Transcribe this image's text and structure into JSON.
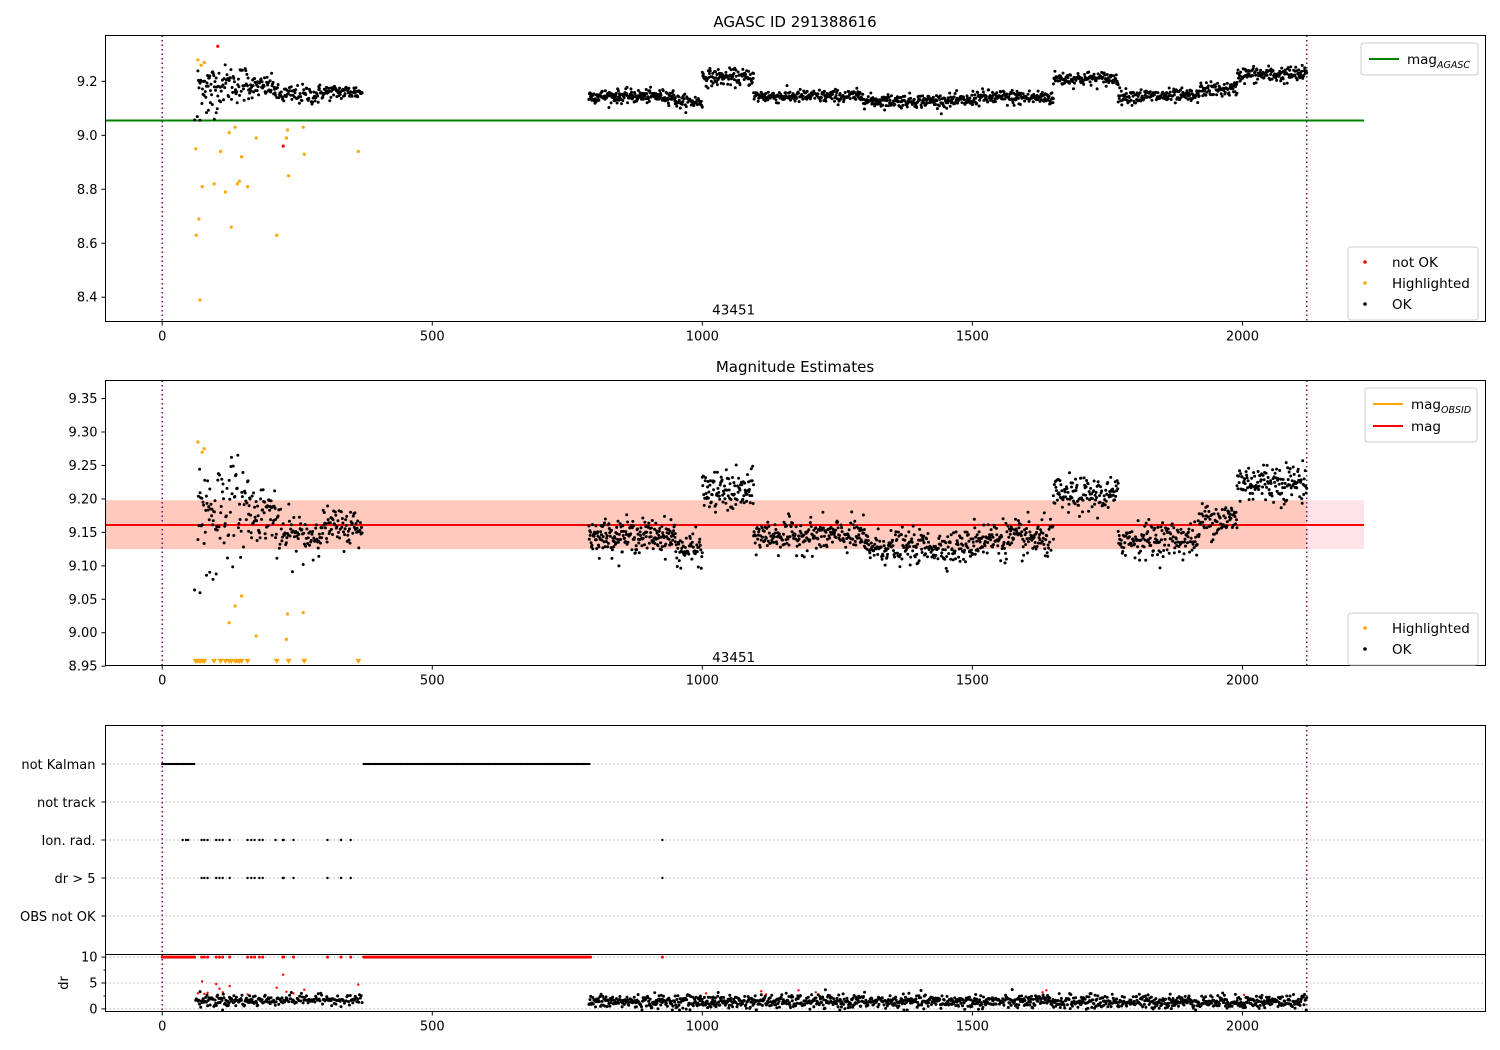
{
  "chart_data": [
    {
      "id": "agasc",
      "type": "scatter",
      "title": "AGASC ID 291388616",
      "xlim": [
        -105,
        2450
      ],
      "ylim": [
        8.31,
        9.37
      ],
      "xticks": [
        0,
        500,
        1000,
        1500,
        2000
      ],
      "yticks": [
        8.4,
        8.6,
        8.8,
        9.0,
        9.2
      ],
      "ytick_decimals": 1,
      "vlines": [
        0,
        2119
      ],
      "annotation": {
        "text": "43451",
        "x": 1058,
        "y": 8.35
      },
      "hline": {
        "name": "mag_AGASC",
        "value": 9.055,
        "x": [
          -105,
          2225
        ],
        "color": "#008000"
      },
      "series": [
        {
          "name": "not OK",
          "color": "#ff0000",
          "points": [
            [
              103,
              9.33
            ],
            [
              224,
              8.96
            ]
          ]
        },
        {
          "name": "Highlighted",
          "color": "#ffa500",
          "points": [
            [
              62,
              8.95
            ],
            [
              63,
              8.63
            ],
            [
              66,
              9.28
            ],
            [
              68,
              8.69
            ],
            [
              70,
              8.39
            ],
            [
              72,
              9.26
            ],
            [
              74,
              8.81
            ],
            [
              78,
              9.27
            ],
            [
              96,
              8.82
            ],
            [
              108,
              8.94
            ],
            [
              117,
              8.79
            ],
            [
              124,
              9.01
            ],
            [
              128,
              8.66
            ],
            [
              135,
              9.03
            ],
            [
              139,
              8.82
            ],
            [
              143,
              8.83
            ],
            [
              147,
              8.92
            ],
            [
              158,
              8.81
            ],
            [
              174,
              8.99
            ],
            [
              212,
              8.63
            ],
            [
              230,
              8.99
            ],
            [
              232,
              9.02
            ],
            [
              234,
              8.85
            ],
            [
              261,
              9.03
            ],
            [
              263,
              8.93
            ],
            [
              363,
              8.94
            ]
          ]
        },
        {
          "name": "OK",
          "color": "#000000",
          "segments": [
            {
              "x": [
                60,
                70
              ],
              "y": 9.06,
              "sd": 0.01,
              "n": 3
            },
            {
              "x": [
                66,
                160
              ],
              "y": 9.19,
              "sd": 0.035,
              "n": 90
            },
            {
              "x": [
                82,
                100
              ],
              "y": 9.1,
              "sd": 0.02,
              "n": 6
            },
            {
              "x": [
                160,
                210
              ],
              "y": 9.18,
              "sd": 0.02,
              "n": 55
            },
            {
              "x": [
                210,
                290
              ],
              "y": 9.15,
              "sd": 0.018,
              "n": 70
            },
            {
              "x": [
                290,
                370
              ],
              "y": 9.16,
              "sd": 0.014,
              "n": 80
            },
            {
              "x": [
                790,
                950
              ],
              "y": 9.145,
              "sd": 0.012,
              "n": 200
            },
            {
              "x": [
                950,
                1000
              ],
              "y": 9.125,
              "sd": 0.012,
              "n": 55
            },
            {
              "x": [
                1000,
                1095
              ],
              "y": 9.215,
              "sd": 0.015,
              "n": 110
            },
            {
              "x": [
                1095,
                1300
              ],
              "y": 9.145,
              "sd": 0.012,
              "n": 220
            },
            {
              "x": [
                1300,
                1500
              ],
              "y": 9.128,
              "sd": 0.012,
              "n": 220
            },
            {
              "x": [
                1500,
                1650
              ],
              "y": 9.14,
              "sd": 0.014,
              "n": 170
            },
            {
              "x": [
                1650,
                1770
              ],
              "y": 9.21,
              "sd": 0.013,
              "n": 130
            },
            {
              "x": [
                1770,
                1920
              ],
              "y": 9.145,
              "sd": 0.013,
              "n": 160
            },
            {
              "x": [
                1920,
                1990
              ],
              "y": 9.17,
              "sd": 0.013,
              "n": 75
            },
            {
              "x": [
                1990,
                2119
              ],
              "y": 9.225,
              "sd": 0.015,
              "n": 140
            }
          ]
        }
      ],
      "legend_top": [
        {
          "label": "mag",
          "sub": "AGASC",
          "color": "#008000"
        }
      ],
      "legend_bottom": [
        {
          "label": "not OK",
          "color": "#ff0000"
        },
        {
          "label": "Highlighted",
          "color": "#ffa500"
        },
        {
          "label": "OK",
          "color": "#000000"
        }
      ]
    },
    {
      "id": "mag-estimates",
      "type": "scatter",
      "title": "Magnitude Estimates",
      "xlim": [
        -105,
        2450
      ],
      "ylim": [
        8.951,
        9.377
      ],
      "xticks": [
        0,
        500,
        1000,
        1500,
        2000
      ],
      "yticks": [
        8.95,
        9.0,
        9.05,
        9.1,
        9.15,
        9.2,
        9.25,
        9.3,
        9.35
      ],
      "ytick_decimals": 2,
      "vlines": [
        0,
        2119
      ],
      "annotation": {
        "text": "43451",
        "x": 1058,
        "y": 8.962
      },
      "bands": [
        {
          "y": [
            9.125,
            9.198
          ],
          "x": [
            -105,
            2225
          ],
          "color": "#ffc0cb",
          "opacity": 0.45
        },
        {
          "y": [
            9.125,
            9.198
          ],
          "x": [
            -105,
            2119
          ],
          "color": "#ffa07a",
          "opacity": 0.38
        }
      ],
      "hlines": [
        {
          "name": "mag",
          "value": 9.161,
          "x": [
            -105,
            2225
          ],
          "color": "#ff0000"
        }
      ],
      "series": [
        {
          "name": "Highlighted",
          "color": "#ffa500",
          "points": [
            [
              66,
              9.285
            ],
            [
              74,
              9.27
            ],
            [
              78,
              9.275
            ],
            [
              124,
              9.015
            ],
            [
              135,
              9.04
            ],
            [
              147,
              9.055
            ],
            [
              174,
              8.995
            ],
            [
              230,
              8.99
            ],
            [
              232,
              9.028
            ],
            [
              261,
              9.03
            ]
          ]
        },
        {
          "name": "Highlighted (clipped)",
          "color": "#ffa500",
          "marker": "triangle-down",
          "y": 8.955,
          "x": [
            62,
            66,
            70,
            74,
            78,
            96,
            108,
            117,
            124,
            128,
            135,
            139,
            143,
            147,
            158,
            212,
            234,
            263,
            363
          ]
        },
        {
          "name": "OK",
          "color": "#000000",
          "segments": [
            {
              "x": [
                60,
                70
              ],
              "y": 9.065,
              "sd": 0.01,
              "n": 2
            },
            {
              "x": [
                66,
                160
              ],
              "y": 9.19,
              "sd": 0.035,
              "n": 90
            },
            {
              "x": [
                82,
                100
              ],
              "y": 9.09,
              "sd": 0.01,
              "n": 4
            },
            {
              "x": [
                160,
                210
              ],
              "y": 9.18,
              "sd": 0.02,
              "n": 55
            },
            {
              "x": [
                210,
                290
              ],
              "y": 9.145,
              "sd": 0.018,
              "n": 70
            },
            {
              "x": [
                290,
                370
              ],
              "y": 9.158,
              "sd": 0.014,
              "n": 80
            },
            {
              "x": [
                790,
                950
              ],
              "y": 9.145,
              "sd": 0.012,
              "n": 200
            },
            {
              "x": [
                950,
                1000
              ],
              "y": 9.125,
              "sd": 0.012,
              "n": 55
            },
            {
              "x": [
                1000,
                1095
              ],
              "y": 9.21,
              "sd": 0.015,
              "n": 110
            },
            {
              "x": [
                1095,
                1300
              ],
              "y": 9.145,
              "sd": 0.012,
              "n": 220
            },
            {
              "x": [
                1300,
                1500
              ],
              "y": 9.128,
              "sd": 0.012,
              "n": 220
            },
            {
              "x": [
                1500,
                1650
              ],
              "y": 9.14,
              "sd": 0.014,
              "n": 170
            },
            {
              "x": [
                1650,
                1770
              ],
              "y": 9.205,
              "sd": 0.013,
              "n": 130
            },
            {
              "x": [
                1770,
                1920
              ],
              "y": 9.14,
              "sd": 0.013,
              "n": 160
            },
            {
              "x": [
                1920,
                1990
              ],
              "y": 9.17,
              "sd": 0.013,
              "n": 75
            },
            {
              "x": [
                1990,
                2119
              ],
              "y": 9.225,
              "sd": 0.015,
              "n": 140
            }
          ]
        }
      ],
      "legend_top": [
        {
          "label": "mag",
          "sub": "OBSID",
          "color": "#ffa500"
        },
        {
          "label": "mag",
          "sub": "",
          "color": "#ff0000"
        }
      ],
      "legend_bottom": [
        {
          "label": "Highlighted",
          "color": "#ffa500"
        },
        {
          "label": "OK",
          "color": "#000000"
        }
      ]
    },
    {
      "id": "flags",
      "type": "scatter",
      "title": "",
      "xlim": [
        -105,
        2450
      ],
      "ylim": [
        -0.5,
        5.7
      ],
      "categories": [
        "not Kalman",
        "not track",
        "Ion. rad.",
        "dr > 5",
        "OBS not OK"
      ],
      "vlines": [
        0,
        2119
      ],
      "series": [
        {
          "name": "not Kalman",
          "color": "#000000",
          "row": 0,
          "ranges": [
            [
              0,
              60
            ],
            [
              373,
              793
            ]
          ]
        },
        {
          "name": "Ion. rad.",
          "color": "#000000",
          "row": 2,
          "xs": [
            38,
            44,
            48,
            73,
            78,
            84,
            100,
            106,
            112,
            125,
            158,
            165,
            171,
            180,
            186,
            210,
            223,
            225,
            243,
            306,
            331,
            349,
            926
          ]
        },
        {
          "name": "dr > 5",
          "color": "#000000",
          "row": 3,
          "xs": [
            73,
            78,
            84,
            100,
            106,
            112,
            125,
            158,
            165,
            171,
            180,
            186,
            223,
            225,
            243,
            306,
            331,
            349,
            926
          ]
        }
      ]
    },
    {
      "id": "dr",
      "type": "scatter",
      "ylabel": "dr",
      "xlim": [
        -105,
        2450
      ],
      "ylim": [
        -0.5,
        10.5
      ],
      "xticks": [
        0,
        500,
        1000,
        1500,
        2000
      ],
      "yticks": [
        0,
        5,
        10
      ],
      "ytick_decimals": 0,
      "vlines": [
        0,
        2119
      ],
      "series": [
        {
          "name": "flagged",
          "color": "#ff0000",
          "points_top": {
            "y": 10,
            "ranges": [
              [
                0,
                60
              ],
              [
                373,
                793
              ]
            ],
            "xs": [
              73,
              78,
              84,
              100,
              106,
              112,
              125,
              158,
              165,
              171,
              180,
              186,
              223,
              225,
              243,
              306,
              331,
              349,
              926
            ]
          },
          "points": [
            [
              66,
              3.0
            ],
            [
              70,
              3.4
            ],
            [
              74,
              5.3
            ],
            [
              78,
              2.9
            ],
            [
              84,
              3.1
            ],
            [
              100,
              4.8
            ],
            [
              106,
              3.9
            ],
            [
              112,
              3.2
            ],
            [
              125,
              4.4
            ],
            [
              158,
              2.8
            ],
            [
              212,
              4.1
            ],
            [
              224,
              6.6
            ],
            [
              230,
              3.3
            ],
            [
              243,
              3.0
            ],
            [
              263,
              3.7
            ],
            [
              363,
              4.7
            ],
            [
              1007,
              3.0
            ],
            [
              1109,
              3.4
            ],
            [
              1118,
              2.8
            ],
            [
              1178,
              3.6
            ],
            [
              1210,
              3.2
            ],
            [
              1630,
              3.2
            ],
            [
              1637,
              3.6
            ],
            [
              2003,
              2.7
            ]
          ]
        },
        {
          "name": "OK",
          "color": "#000000",
          "segments": [
            {
              "x": [
                62,
                200
              ],
              "y": 1.6,
              "sd": 0.6,
              "n": 120
            },
            {
              "x": [
                200,
                370
              ],
              "y": 1.8,
              "sd": 0.5,
              "n": 110
            },
            {
              "x": [
                790,
                2119
              ],
              "y": 1.4,
              "sd": 0.65,
              "n": 1300
            }
          ]
        }
      ]
    }
  ]
}
